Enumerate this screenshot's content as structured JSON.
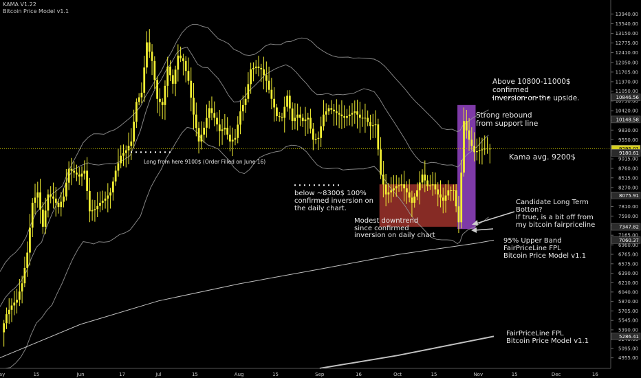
{
  "legend": {
    "line1": "KAMA V1.22",
    "line2": "Bitcoin Price Model v1.1"
  },
  "colors": {
    "background": "#000000",
    "candle": "#f2ef33",
    "band": "#9a9a9a",
    "fpl": "#d6d6d6",
    "axis_text": "#c8c8c8",
    "price_line": "#c9c400",
    "red_box": "#d9463b",
    "purple_box": "#a24ad6",
    "dots": "#ffffff"
  },
  "annotations": {
    "above": "Above 10800-11000$\nconfirmed\ninversion on the upside.",
    "rebound": "Strong rebound\nfrom support line",
    "kama": "Kama avg. 9200$",
    "long_from": "Long from here 9100$ (Order Filled on June 16)",
    "below": "below ~8300$ 100%\nconfirmed inversion on\nthe daily chart.",
    "candidate": "Candidate Long Term\nBotton?\nIf true, is a bit off from\nmy bitcoin fairpriceline",
    "modest": "Modest downtrend\nsince confirmed\ninversion on daily chart",
    "upper_band": "95% Upper Band\nFairPriceLine FPL\nBitcoin Price Model v1.1",
    "fpl": "FairPriceLine FPL\nBitcoin Price Model v1.1"
  },
  "chart_data": {
    "type": "candlestick",
    "symbol": "BTCUSD",
    "interval": "daily",
    "y_scale": "log",
    "ylim": [
      4800,
      14300
    ],
    "xlim": [
      "2019-05-01",
      "2019-12-22"
    ],
    "y_ticks": [
      4955,
      5095,
      5240,
      5390,
      5545,
      5705,
      5870,
      6040,
      6210,
      6390,
      6575,
      6765,
      6960,
      7165,
      7375,
      7590,
      7810,
      8035,
      8270,
      8515,
      8760,
      9015,
      9280,
      9550,
      9830,
      10120,
      10420,
      10730,
      11050,
      11370,
      11705,
      12050,
      12410,
      12775,
      13150,
      13540,
      13940
    ],
    "y_tick_labels": [
      "4955.00",
      "5095.00",
      "5240.00",
      "5390.00",
      "5545.00",
      "5705.00",
      "5870.00",
      "6040.00",
      "6210.00",
      "6390.00",
      "6575.00",
      "6765.00",
      "6960.00",
      "7165.00",
      "7375.00",
      "7590.00",
      "7810.00",
      "8035.00",
      "8270.00",
      "8515.00",
      "8760.00",
      "9015.00",
      "9280.00",
      "9550.00",
      "9830.00",
      "10120.00",
      "10420.00",
      "10730.00",
      "11050.00",
      "11370.00",
      "11705.00",
      "12050.00",
      "12410.00",
      "12775.00",
      "13150.00",
      "13540.00",
      "13940.00"
    ],
    "x_ticks": [
      {
        "date": "2019-05-01",
        "label": "May"
      },
      {
        "date": "2019-05-15",
        "label": "15"
      },
      {
        "date": "2019-06-01",
        "label": "Jun"
      },
      {
        "date": "2019-06-17",
        "label": "17"
      },
      {
        "date": "2019-07-01",
        "label": "Jul"
      },
      {
        "date": "2019-07-15",
        "label": "15"
      },
      {
        "date": "2019-08-01",
        "label": "Aug"
      },
      {
        "date": "2019-08-15",
        "label": "15"
      },
      {
        "date": "2019-09-01",
        "label": "Sep"
      },
      {
        "date": "2019-09-16",
        "label": "16"
      },
      {
        "date": "2019-10-01",
        "label": "Oct"
      },
      {
        "date": "2019-10-15",
        "label": "15"
      },
      {
        "date": "2019-11-01",
        "label": "Nov"
      },
      {
        "date": "2019-11-15",
        "label": "15"
      },
      {
        "date": "2019-12-01",
        "label": "Dec"
      },
      {
        "date": "2019-12-16",
        "label": "16"
      }
    ],
    "price_tags": [
      {
        "value": 10846.56,
        "label": "10846.56",
        "kind": "dark"
      },
      {
        "value": 10148.58,
        "label": "10148.58",
        "kind": "dark"
      },
      {
        "value": 9295.01,
        "label": "9295.01",
        "kind": "yellow"
      },
      {
        "value": 9180.61,
        "label": "9180.61",
        "kind": "dark"
      },
      {
        "value": 8075.91,
        "label": "8075.91",
        "kind": "dark"
      },
      {
        "value": 7347.82,
        "label": "7347.82",
        "kind": "dark"
      },
      {
        "value": 7060.37,
        "label": "7060.37",
        "kind": "dark"
      },
      {
        "value": 5286.41,
        "label": "5286.41",
        "kind": "dark"
      }
    ],
    "last_price": 9295.01,
    "close_series": [
      [
        "2019-05-01",
        5350
      ],
      [
        "2019-05-03",
        5650
      ],
      [
        "2019-05-05",
        5800
      ],
      [
        "2019-05-07",
        5900
      ],
      [
        "2019-05-09",
        6200
      ],
      [
        "2019-05-11",
        6800
      ],
      [
        "2019-05-13",
        7900
      ],
      [
        "2019-05-15",
        8150
      ],
      [
        "2019-05-17",
        7350
      ],
      [
        "2019-05-19",
        8100
      ],
      [
        "2019-05-21",
        8000
      ],
      [
        "2019-05-23",
        7800
      ],
      [
        "2019-05-25",
        8050
      ],
      [
        "2019-05-27",
        8750
      ],
      [
        "2019-05-29",
        8650
      ],
      [
        "2019-05-31",
        8550
      ],
      [
        "2019-06-02",
        8700
      ],
      [
        "2019-06-04",
        7700
      ],
      [
        "2019-06-06",
        7750
      ],
      [
        "2019-06-08",
        7900
      ],
      [
        "2019-06-10",
        8000
      ],
      [
        "2019-06-12",
        8150
      ],
      [
        "2019-06-14",
        8700
      ],
      [
        "2019-06-16",
        9100
      ],
      [
        "2019-06-18",
        9250
      ],
      [
        "2019-06-20",
        9500
      ],
      [
        "2019-06-22",
        10700
      ],
      [
        "2019-06-24",
        11000
      ],
      [
        "2019-06-26",
        12800
      ],
      [
        "2019-06-28",
        12100
      ],
      [
        "2019-06-30",
        10800
      ],
      [
        "2019-07-02",
        10600
      ],
      [
        "2019-07-04",
        11900
      ],
      [
        "2019-07-06",
        11300
      ],
      [
        "2019-07-08",
        12300
      ],
      [
        "2019-07-10",
        12100
      ],
      [
        "2019-07-12",
        11400
      ],
      [
        "2019-07-14",
        10300
      ],
      [
        "2019-07-16",
        9500
      ],
      [
        "2019-07-18",
        9900
      ],
      [
        "2019-07-20",
        10500
      ],
      [
        "2019-07-22",
        10200
      ],
      [
        "2019-07-24",
        9800
      ],
      [
        "2019-07-26",
        9900
      ],
      [
        "2019-07-28",
        9500
      ],
      [
        "2019-07-30",
        9600
      ],
      [
        "2019-08-01",
        10400
      ],
      [
        "2019-08-03",
        10800
      ],
      [
        "2019-08-05",
        11800
      ],
      [
        "2019-08-07",
        11900
      ],
      [
        "2019-08-09",
        11800
      ],
      [
        "2019-08-11",
        11400
      ],
      [
        "2019-08-13",
        10800
      ],
      [
        "2019-08-15",
        10250
      ],
      [
        "2019-08-17",
        10200
      ],
      [
        "2019-08-19",
        10900
      ],
      [
        "2019-08-21",
        10100
      ],
      [
        "2019-08-23",
        10300
      ],
      [
        "2019-08-25",
        10100
      ],
      [
        "2019-08-27",
        10200
      ],
      [
        "2019-08-29",
        9550
      ],
      [
        "2019-08-31",
        9600
      ],
      [
        "2019-09-02",
        10300
      ],
      [
        "2019-09-04",
        10500
      ],
      [
        "2019-09-06",
        10400
      ],
      [
        "2019-09-08",
        10300
      ],
      [
        "2019-09-10",
        10200
      ],
      [
        "2019-09-12",
        10300
      ],
      [
        "2019-09-14",
        10400
      ],
      [
        "2019-09-16",
        10200
      ],
      [
        "2019-09-18",
        10200
      ],
      [
        "2019-09-20",
        9950
      ],
      [
        "2019-09-22",
        10000
      ],
      [
        "2019-09-24",
        8600
      ],
      [
        "2019-09-26",
        8100
      ],
      [
        "2019-09-28",
        8200
      ],
      [
        "2019-09-30",
        8300
      ],
      [
        "2019-10-02",
        8350
      ],
      [
        "2019-10-04",
        8150
      ],
      [
        "2019-10-06",
        7900
      ],
      [
        "2019-10-08",
        8200
      ],
      [
        "2019-10-10",
        8600
      ],
      [
        "2019-10-12",
        8300
      ],
      [
        "2019-10-14",
        8350
      ],
      [
        "2019-10-16",
        8100
      ],
      [
        "2019-10-18",
        7950
      ],
      [
        "2019-10-20",
        8200
      ],
      [
        "2019-10-22",
        8200
      ],
      [
        "2019-10-24",
        7450
      ],
      [
        "2019-10-25",
        8650
      ],
      [
        "2019-10-26",
        10100
      ],
      [
        "2019-10-28",
        9550
      ],
      [
        "2019-10-30",
        9200
      ],
      [
        "2019-11-01",
        9250
      ],
      [
        "2019-11-03",
        9300
      ],
      [
        "2019-11-05",
        9295
      ]
    ],
    "series": [
      {
        "name": "95% Upper Band FairPriceLine FPL",
        "values": [
          [
            "2019-05-01",
            4955
          ],
          [
            "2019-06-01",
            5480
          ],
          [
            "2019-07-01",
            5880
          ],
          [
            "2019-08-01",
            6190
          ],
          [
            "2019-09-01",
            6470
          ],
          [
            "2019-10-01",
            6760
          ],
          [
            "2019-11-01",
            7000
          ],
          [
            "2019-11-07",
            7060
          ]
        ]
      },
      {
        "name": "FairPriceLine FPL",
        "values": [
          [
            "2019-09-01",
            4800
          ],
          [
            "2019-10-01",
            4990
          ],
          [
            "2019-10-15",
            5100
          ],
          [
            "2019-11-07",
            5286
          ]
        ]
      }
    ]
  }
}
